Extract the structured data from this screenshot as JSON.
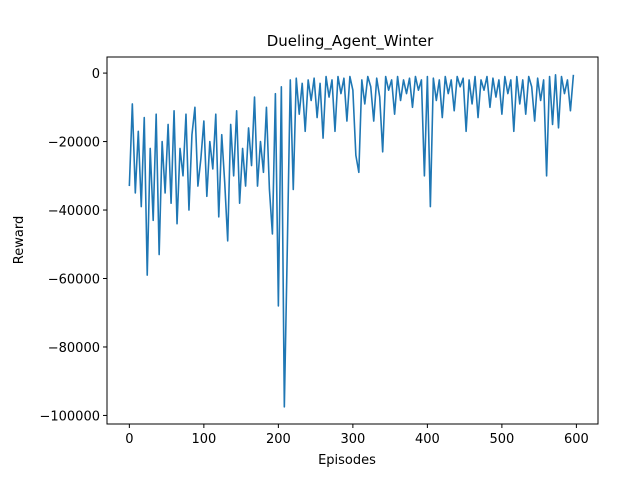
{
  "chart_data": {
    "type": "line",
    "title": "Dueling_Agent_Winter",
    "xlabel": "Episodes",
    "ylabel": "Reward",
    "xlim": [
      -30,
      629
    ],
    "ylim": [
      -102500,
      4700
    ],
    "xticks": [
      0,
      100,
      200,
      300,
      400,
      500,
      600
    ],
    "yticks": [
      {
        "value": -100000,
        "label": "−100000"
      },
      {
        "value": -80000,
        "label": "−80000"
      },
      {
        "value": -60000,
        "label": "−60000"
      },
      {
        "value": -40000,
        "label": "−40000"
      },
      {
        "value": -20000,
        "label": "−20000"
      },
      0
    ],
    "grid": false,
    "series": [
      {
        "name": "Reward",
        "color": "#1f77b4",
        "x": [
          0,
          4,
          8,
          12,
          16,
          20,
          24,
          28,
          32,
          36,
          40,
          44,
          48,
          52,
          56,
          60,
          64,
          68,
          72,
          76,
          80,
          84,
          88,
          92,
          96,
          100,
          104,
          108,
          112,
          116,
          120,
          124,
          128,
          132,
          136,
          140,
          144,
          148,
          152,
          156,
          160,
          164,
          168,
          172,
          176,
          180,
          184,
          188,
          192,
          196,
          200,
          204,
          208,
          212,
          216,
          220,
          224,
          228,
          232,
          236,
          240,
          244,
          248,
          252,
          256,
          260,
          264,
          268,
          272,
          276,
          280,
          284,
          288,
          292,
          296,
          300,
          304,
          308,
          312,
          316,
          320,
          324,
          328,
          332,
          336,
          340,
          344,
          348,
          352,
          356,
          360,
          364,
          368,
          372,
          376,
          380,
          384,
          388,
          392,
          396,
          400,
          404,
          408,
          412,
          416,
          420,
          424,
          428,
          432,
          436,
          440,
          444,
          448,
          452,
          456,
          460,
          464,
          468,
          472,
          476,
          480,
          484,
          488,
          492,
          496,
          500,
          504,
          508,
          512,
          516,
          520,
          524,
          528,
          532,
          536,
          540,
          544,
          548,
          552,
          556,
          560,
          564,
          568,
          572,
          576,
          580,
          584,
          588,
          592,
          596
        ],
        "values": [
          -33000,
          -9000,
          -35000,
          -17000,
          -39000,
          -13000,
          -59000,
          -22000,
          -43000,
          -12000,
          -53000,
          -20000,
          -35000,
          -15000,
          -38000,
          -11000,
          -44000,
          -22000,
          -30000,
          -12000,
          -40000,
          -18000,
          -10000,
          -33000,
          -25000,
          -14000,
          -36000,
          -20000,
          -28000,
          -12000,
          -42000,
          -18000,
          -32000,
          -49000,
          -15000,
          -30000,
          -11000,
          -38000,
          -22000,
          -33000,
          -16000,
          -27000,
          -7000,
          -33000,
          -20000,
          -29000,
          -10000,
          -34000,
          -47000,
          -6000,
          -68000,
          -4000,
          -97500,
          -51000,
          -2000,
          -34000,
          -1500,
          -12000,
          -3000,
          -17000,
          -2000,
          -8000,
          -1500,
          -13000,
          -3000,
          -19000,
          -1000,
          -7000,
          -2000,
          -17000,
          -1000,
          -6000,
          -1500,
          -14000,
          -1000,
          -5000,
          -24000,
          -29000,
          -2000,
          -9000,
          -1000,
          -4000,
          -14000,
          -1500,
          -7000,
          -23000,
          -1000,
          -5000,
          -2000,
          -12000,
          -1000,
          -8000,
          -2000,
          -6000,
          -1500,
          -10000,
          -1000,
          -5000,
          -2000,
          -30000,
          -1000,
          -39000,
          -1500,
          -8000,
          -2000,
          -13000,
          -1000,
          -6000,
          -2000,
          -11000,
          -1000,
          -4000,
          -1500,
          -17000,
          -2000,
          -9000,
          -1000,
          -13000,
          -2000,
          -5000,
          -1000,
          -10000,
          -1500,
          -7000,
          -2000,
          -12000,
          -1000,
          -6000,
          -2000,
          -17000,
          -1000,
          -9000,
          -2000,
          -12000,
          -1000,
          -4000,
          -14000,
          -1500,
          -8000,
          -2000,
          -30000,
          -1000,
          -15000,
          -500,
          -16000,
          -1000,
          -6000,
          -2000,
          -11000,
          -500
        ]
      }
    ]
  }
}
